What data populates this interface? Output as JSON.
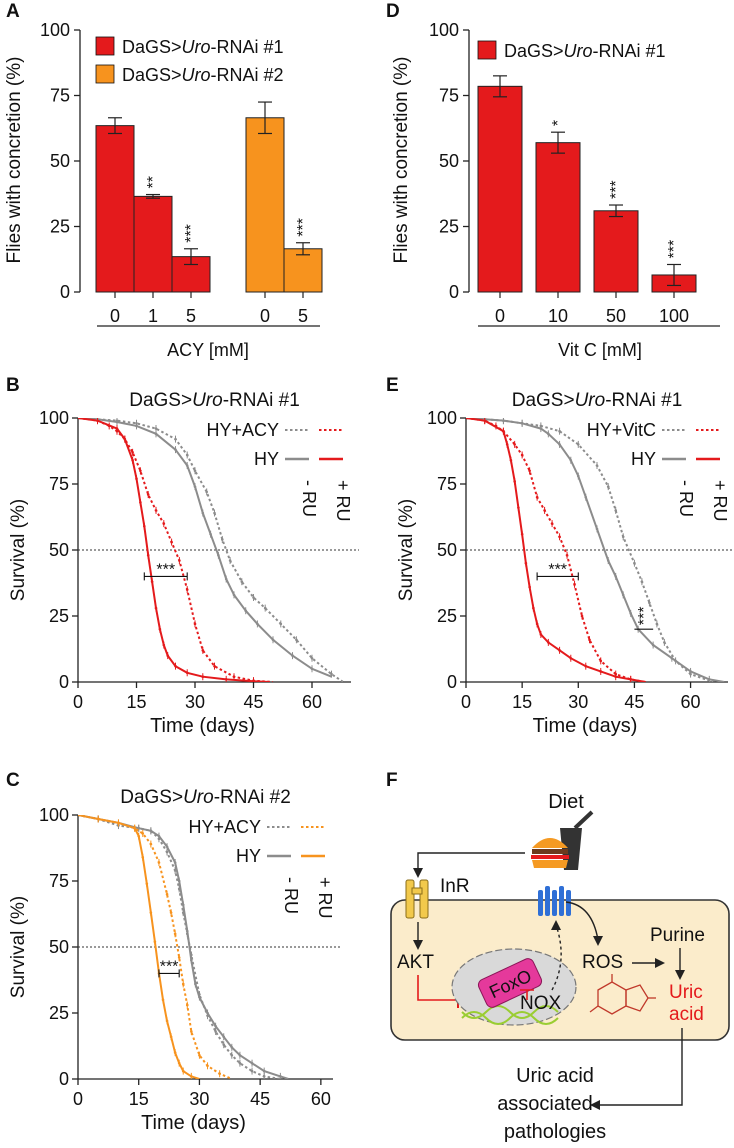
{
  "colors": {
    "red": "#e41a1c",
    "orange": "#f7931e",
    "gray": "#8c8c8c",
    "cell": "#fbeccb",
    "cellStroke": "#333333"
  },
  "panels": {
    "A": "A",
    "B": "B",
    "C": "C",
    "D": "D",
    "E": "E",
    "F": "F"
  },
  "figure_text": {
    "ylabel_bar": "Flies with concretion (%)",
    "ylabel_surv": "Survival (%)",
    "xlabel_surv": "Time (days)",
    "genotype_prefix": "DaGS>",
    "genotype_italic": "Uro",
    "rnai1": "-RNAi #1",
    "rnai2": "-RNAi #2",
    "hy": "HY",
    "hy_acy": "HY+ACY",
    "hy_vitc": "HY+VitC",
    "minus_ru": "- RU",
    "plus_ru": "+ RU",
    "acy_label": "ACY [mM]",
    "vitc_label": "Vit C [mM]"
  },
  "chart_data": [
    {
      "id": "A",
      "type": "bar",
      "title": "",
      "ylabel": "Flies with concretion (%)",
      "xlabel": "ACY [mM]",
      "ylim": [
        0,
        100
      ],
      "yticks": [
        0,
        25,
        50,
        75,
        100
      ],
      "series": [
        {
          "name": "DaGS>Uro-RNAi #1",
          "color": "#e41a1c",
          "categories": [
            "0",
            "1",
            "5"
          ],
          "values": [
            63.5,
            36.5,
            13.5
          ],
          "errors": [
            3,
            0.7,
            3
          ],
          "sig": [
            "",
            "**",
            "***"
          ]
        },
        {
          "name": "DaGS>Uro-RNAi #2",
          "color": "#f7931e",
          "categories": [
            "0",
            "5"
          ],
          "values": [
            66.5,
            16.5
          ],
          "errors": [
            6,
            2.3
          ],
          "sig": [
            "",
            "***"
          ]
        }
      ]
    },
    {
      "id": "D",
      "type": "bar",
      "ylabel": "Flies with concretion (%)",
      "xlabel": "Vit C [mM]",
      "ylim": [
        0,
        100
      ],
      "yticks": [
        0,
        25,
        50,
        75,
        100
      ],
      "series": [
        {
          "name": "DaGS>Uro-RNAi #1",
          "color": "#e41a1c",
          "categories": [
            "0",
            "10",
            "50",
            "100"
          ],
          "values": [
            78.5,
            57,
            31,
            6.5
          ],
          "errors": [
            4,
            4,
            2.2,
            4
          ],
          "sig": [
            "",
            "*",
            "***",
            "***"
          ]
        }
      ]
    },
    {
      "id": "B",
      "type": "line",
      "title": "DaGS>Uro-RNAi #1",
      "xlabel": "Time (days)",
      "ylabel": "Survival (%)",
      "xlim": [
        0,
        70
      ],
      "ylim": [
        0,
        100
      ],
      "xticks": [
        0,
        15,
        30,
        45,
        60
      ],
      "yticks": [
        0,
        25,
        50,
        75,
        100
      ],
      "treatment": "HY+ACY",
      "sig": "***",
      "sig_range": [
        17,
        28
      ],
      "series": [
        {
          "name": "HY -RU",
          "color": "#8c8c8c",
          "dashed": false,
          "x": [
            0,
            5,
            10,
            15,
            20,
            25,
            28,
            30,
            32,
            34,
            36,
            38,
            40,
            43,
            46,
            50,
            55,
            60,
            65
          ],
          "y": [
            100,
            99.5,
            98.5,
            97,
            94,
            88,
            82,
            74,
            64,
            56,
            48,
            39,
            33,
            27,
            22,
            16,
            10,
            5,
            2
          ]
        },
        {
          "name": "HY +RU",
          "color": "#e41a1c",
          "dashed": false,
          "x": [
            0,
            5,
            10,
            12,
            14,
            15,
            16,
            17,
            18,
            19,
            20,
            21,
            22,
            23,
            25,
            28,
            32,
            38,
            45,
            49
          ],
          "y": [
            100,
            99,
            96,
            92,
            84,
            77,
            68,
            59,
            48,
            38,
            28,
            20,
            14,
            10,
            6,
            3.5,
            2,
            1,
            0.3,
            0
          ]
        },
        {
          "name": "HY+ACY -RU",
          "color": "#8c8c8c",
          "dashed": true,
          "x": [
            0,
            5,
            10,
            15,
            20,
            25,
            28,
            30,
            33,
            35,
            37,
            39,
            42,
            45,
            48,
            52,
            56,
            60,
            65,
            68
          ],
          "y": [
            100,
            99.5,
            99,
            98,
            96,
            92,
            86,
            80,
            72,
            64,
            54,
            46,
            38,
            32,
            28,
            22,
            16,
            9,
            3,
            0
          ]
        },
        {
          "name": "HY+ACY +RU",
          "color": "#e41a1c",
          "dashed": true,
          "x": [
            0,
            5,
            8,
            10,
            12,
            14,
            16,
            18,
            20,
            22,
            24,
            26,
            28,
            30,
            32,
            35,
            40,
            45,
            50
          ],
          "y": [
            100,
            99,
            97,
            95,
            92,
            87,
            80,
            71,
            65,
            60,
            53,
            46,
            35,
            22,
            12,
            6,
            2,
            0.5,
            0
          ]
        }
      ]
    },
    {
      "id": "E",
      "type": "line",
      "title": "DaGS>Uro-RNAi #1",
      "xlabel": "Time (days)",
      "ylabel": "Survival (%)",
      "xlim": [
        0,
        70
      ],
      "ylim": [
        0,
        100
      ],
      "xticks": [
        0,
        15,
        30,
        45,
        60
      ],
      "yticks": [
        0,
        25,
        50,
        75,
        100
      ],
      "treatment": "HY+VitC",
      "sig": "***",
      "sig_range": [
        19,
        30
      ],
      "sig2": "***",
      "sig2_range": [
        45,
        50
      ],
      "series": [
        {
          "name": "HY -RU",
          "color": "#8c8c8c",
          "dashed": false,
          "x": [
            0,
            5,
            10,
            15,
            20,
            22,
            25,
            28,
            30,
            32,
            35,
            38,
            40,
            42,
            44,
            46,
            50,
            55,
            60,
            65,
            69
          ],
          "y": [
            100,
            99.5,
            99,
            98,
            96,
            94,
            90,
            84,
            78,
            70,
            58,
            46,
            40,
            33,
            26,
            20,
            14,
            9,
            4,
            1,
            0
          ]
        },
        {
          "name": "HY +RU",
          "color": "#e41a1c",
          "dashed": false,
          "x": [
            0,
            5,
            10,
            11,
            12,
            13,
            14,
            15,
            16,
            17,
            18,
            19,
            20,
            22,
            25,
            28,
            32,
            36,
            40,
            44,
            48
          ],
          "y": [
            100,
            99,
            95,
            90,
            84,
            76,
            66,
            56,
            45,
            36,
            28,
            22,
            18,
            15,
            12,
            9,
            6,
            4,
            2,
            1,
            0
          ]
        },
        {
          "name": "HY+VitC -RU",
          "color": "#8c8c8c",
          "dashed": true,
          "x": [
            0,
            5,
            10,
            15,
            20,
            25,
            30,
            35,
            38,
            40,
            42,
            45,
            47,
            49,
            51,
            53,
            56,
            60,
            66
          ],
          "y": [
            100,
            99.5,
            99,
            98,
            97,
            95,
            90,
            82,
            74,
            65,
            55,
            45,
            38,
            30,
            22,
            15,
            8,
            3,
            0
          ]
        },
        {
          "name": "HY+VitC +RU",
          "color": "#e41a1c",
          "dashed": true,
          "x": [
            0,
            5,
            8,
            10,
            13,
            15,
            17,
            19,
            21,
            23,
            25,
            27,
            29,
            31,
            33,
            36,
            40,
            44,
            48
          ],
          "y": [
            100,
            99,
            97,
            95,
            90,
            86,
            80,
            70,
            65,
            60,
            55,
            48,
            37,
            25,
            16,
            8,
            3,
            1,
            0
          ]
        }
      ]
    },
    {
      "id": "C",
      "type": "line",
      "title": "DaGS>Uro-RNAi #2",
      "xlabel": "Time (days)",
      "ylabel": "Survival (%)",
      "xlim": [
        0,
        63
      ],
      "ylim": [
        0,
        100
      ],
      "xticks": [
        0,
        15,
        30,
        45,
        60
      ],
      "yticks": [
        0,
        25,
        50,
        75,
        100
      ],
      "treatment": "HY+ACY",
      "sig": "***",
      "sig_range": [
        20,
        25
      ],
      "series": [
        {
          "name": "HY -RU",
          "color": "#8c8c8c",
          "dashed": false,
          "x": [
            0,
            5,
            10,
            15,
            18,
            20,
            22,
            24,
            25,
            26,
            27,
            28,
            29,
            30,
            32,
            34,
            36,
            38,
            40,
            43,
            46,
            50,
            52
          ],
          "y": [
            100,
            98.5,
            97,
            95,
            94,
            92,
            88,
            82,
            75,
            66,
            56,
            45,
            36,
            31,
            25,
            20,
            16,
            12,
            9,
            6,
            3,
            1,
            0
          ]
        },
        {
          "name": "HY +RU",
          "color": "#f7931e",
          "dashed": false,
          "x": [
            0,
            5,
            10,
            14,
            15,
            16,
            17,
            18,
            19,
            20,
            21,
            22,
            23,
            24,
            25,
            26,
            28,
            30
          ],
          "y": [
            100,
            98.5,
            97,
            95,
            92,
            84,
            74,
            63,
            52,
            40,
            30,
            22,
            16,
            10,
            6,
            3,
            1,
            0
          ]
        },
        {
          "name": "HY+ACY -RU",
          "color": "#8c8c8c",
          "dashed": true,
          "x": [
            0,
            5,
            10,
            15,
            18,
            20,
            22,
            24,
            25,
            26,
            27,
            28,
            30,
            32,
            34,
            36,
            38,
            40,
            43,
            46,
            50
          ],
          "y": [
            100,
            98.5,
            96,
            95,
            94,
            91,
            86,
            79,
            72,
            63,
            55,
            47,
            32,
            24,
            18,
            13,
            9,
            6,
            3,
            1,
            0
          ]
        },
        {
          "name": "HY+ACY +RU",
          "color": "#f7931e",
          "dashed": true,
          "x": [
            0,
            5,
            10,
            14,
            16,
            18,
            20,
            22,
            23,
            24,
            25,
            26,
            27,
            28,
            30,
            32,
            35,
            38
          ],
          "y": [
            100,
            98.5,
            97,
            95,
            93,
            89,
            82,
            70,
            63,
            55,
            46,
            36,
            28,
            18,
            9,
            5,
            2,
            0
          ]
        }
      ]
    }
  ],
  "diagram": {
    "diet": "Diet",
    "inr": "InR",
    "akt": "AKT",
    "foxo": "FoxO",
    "nox": "NOX",
    "ros": "ROS",
    "purine": "Purine",
    "uric1": "Uric",
    "uric2": "acid",
    "path1": "Uric acid",
    "path2": "associated",
    "path3": "pathologies"
  }
}
